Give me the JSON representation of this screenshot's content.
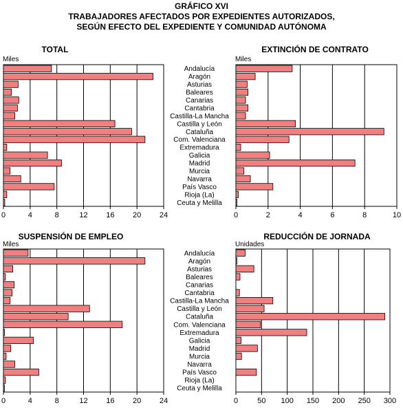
{
  "header": {
    "line1": "GRÁFICO XVI",
    "line2": "TRABAJADORES AFECTADOS POR EXPEDIENTES AUTORIZADOS,",
    "line3": "SEGÚN EFECTO DEL EXPEDIENTE Y  COMUNIDAD AUTÓNOMA"
  },
  "regions": [
    "Andalucía",
    "Aragón",
    "Asturias",
    "Baleares",
    "Canarias",
    "Cantabria",
    "Castilla-La Mancha",
    "Castilla y León",
    "Cataluña",
    "Com. Valenciana",
    "Extremadura",
    "Galicia",
    "Madrid",
    "Murcia",
    "Navarra",
    "País Vasco",
    "Rioja (La)",
    "Ceuta y Melilla"
  ],
  "colors": {
    "bar": "#f08080",
    "bar_stroke": "#000000",
    "grid": "#000000"
  },
  "chart_data": [
    {
      "type": "bar",
      "orientation": "horizontal",
      "title": "TOTAL",
      "unit": "Miles",
      "xlim": [
        0,
        24
      ],
      "ticks": [
        0,
        4,
        8,
        12,
        16,
        20,
        24
      ],
      "values": [
        7.2,
        22.4,
        2.2,
        1.2,
        2.3,
        2.1,
        1.7,
        16.7,
        19.2,
        21.2,
        0.5,
        6.6,
        8.7,
        1.0,
        2.6,
        7.6,
        0.5,
        0.2
      ]
    },
    {
      "type": "bar",
      "orientation": "horizontal",
      "title": "EXTINCIÓN DE CONTRATO",
      "unit": "Miles",
      "xlim": [
        0,
        10
      ],
      "ticks": [
        0,
        2,
        4,
        6,
        8,
        10
      ],
      "values": [
        3.5,
        1.2,
        0.7,
        0.75,
        0.6,
        0.75,
        0.6,
        3.7,
        9.2,
        3.3,
        0.3,
        2.1,
        7.4,
        0.5,
        0.9,
        2.3,
        0.15,
        0.05
      ]
    },
    {
      "type": "bar",
      "orientation": "horizontal",
      "title": "SUSPENSIÓN DE EMPLEO",
      "unit": "Miles",
      "xlim": [
        0,
        24
      ],
      "ticks": [
        0,
        4,
        8,
        12,
        16,
        20,
        24
      ],
      "values": [
        3.7,
        21.2,
        1.4,
        0.3,
        1.6,
        1.3,
        1.0,
        12.9,
        9.7,
        17.8,
        0.1,
        4.5,
        1.1,
        0.4,
        1.7,
        5.3,
        0.3,
        0.1
      ]
    },
    {
      "type": "bar",
      "orientation": "horizontal",
      "title": "REDUCCIÓN DE JORNADA",
      "unit": "Unidades",
      "xlim": [
        0,
        300
      ],
      "ticks": [
        0,
        50,
        100,
        150,
        200,
        250,
        300
      ],
      "values": [
        18,
        2,
        35,
        8,
        0,
        7,
        72,
        55,
        290,
        48,
        138,
        10,
        42,
        11,
        0,
        40,
        0,
        0
      ]
    }
  ]
}
